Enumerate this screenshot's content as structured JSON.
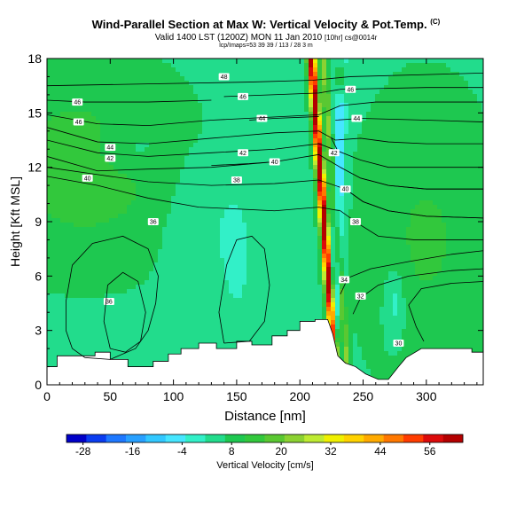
{
  "header": {
    "title": "Wind-Parallel Section at Max W: Vertical Velocity & Pot.Temp.",
    "title_mark": "(C)",
    "subtitle": "Valid 1400 LST (1200Z) MON 11 Jan 2010",
    "subtitle_note": "[10hr] cs@0014r",
    "location": "lcp/Imaps=53 39 39 / 113 / 28 3 m"
  },
  "chart_data": {
    "type": "heatmap",
    "xlabel": "Distance [nm]",
    "ylabel": "Height [Kft MSL]",
    "xlim": [
      0,
      345
    ],
    "ylim": [
      0,
      18
    ],
    "x_ticks": [
      "0",
      "50",
      "100",
      "150",
      "200",
      "250",
      "300"
    ],
    "y_ticks": [
      "0",
      "3",
      "6",
      "9",
      "12",
      "15",
      "18"
    ],
    "x_tick_values": [
      0,
      50,
      100,
      150,
      200,
      250,
      300
    ],
    "y_tick_values": [
      0,
      3,
      6,
      9,
      12,
      15,
      18
    ],
    "grid": false,
    "colorbar": {
      "label": "Vertical Velocity [cm/s]",
      "tick_labels": [
        "-28",
        "-16",
        "-4",
        "8",
        "20",
        "32",
        "44",
        "56"
      ],
      "tick_values": [
        -28,
        -16,
        -4,
        8,
        20,
        32,
        44,
        56
      ],
      "range": [
        -32,
        64
      ],
      "colors": [
        "#0000c8",
        "#0a3cf0",
        "#1e78ff",
        "#28a0ff",
        "#32c8ff",
        "#46e6ff",
        "#32f0c8",
        "#22dc8c",
        "#1ec850",
        "#32c83c",
        "#5ac832",
        "#8cd232",
        "#beeb32",
        "#f0f000",
        "#ffd200",
        "#ffaa00",
        "#ff7800",
        "#ff3c00",
        "#dc0a0a",
        "#b40000"
      ]
    },
    "terrain_profile": [
      [
        0,
        1.0
      ],
      [
        8,
        1.0
      ],
      [
        8,
        1.6
      ],
      [
        18,
        1.6
      ],
      [
        38,
        1.6
      ],
      [
        38,
        1.8
      ],
      [
        50,
        1.8
      ],
      [
        50,
        1.4
      ],
      [
        64,
        1.4
      ],
      [
        64,
        1.0
      ],
      [
        84,
        1.0
      ],
      [
        84,
        1.3
      ],
      [
        96,
        1.3
      ],
      [
        96,
        1.7
      ],
      [
        106,
        1.7
      ],
      [
        106,
        2.0
      ],
      [
        120,
        2.0
      ],
      [
        120,
        2.3
      ],
      [
        134,
        2.3
      ],
      [
        134,
        2.0
      ],
      [
        150,
        2.0
      ],
      [
        150,
        2.4
      ],
      [
        162,
        2.4
      ],
      [
        162,
        2.2
      ],
      [
        178,
        2.2
      ],
      [
        178,
        2.7
      ],
      [
        190,
        2.7
      ],
      [
        190,
        3.0
      ],
      [
        200,
        3.0
      ],
      [
        200,
        3.5
      ],
      [
        212,
        3.5
      ],
      [
        212,
        3.6
      ],
      [
        222,
        3.6
      ],
      [
        226,
        2.8
      ],
      [
        230,
        1.6
      ],
      [
        236,
        1.2
      ],
      [
        244,
        1.0
      ],
      [
        252,
        0.6
      ],
      [
        262,
        0.3
      ],
      [
        270,
        0.3
      ],
      [
        278,
        1.0
      ],
      [
        284,
        1.5
      ],
      [
        296,
        2.0
      ],
      [
        336,
        2.0
      ],
      [
        336,
        1.8
      ],
      [
        345,
        1.8
      ]
    ],
    "theta_contours": [
      {
        "label": "30",
        "points": [
          [
            298,
            2.4
          ],
          [
            292,
            3.2
          ],
          [
            286,
            4.4
          ],
          [
            296,
            5.3
          ],
          [
            320,
            5.6
          ],
          [
            345,
            5.7
          ]
        ],
        "label_at": [
          278,
          2.3
        ]
      },
      {
        "label": "32",
        "points": [
          [
            242,
            3.9
          ],
          [
            248,
            4.8
          ],
          [
            262,
            5.5
          ],
          [
            286,
            6.0
          ],
          [
            320,
            6.3
          ],
          [
            345,
            6.4
          ]
        ],
        "label_at": [
          248,
          4.9
        ]
      },
      {
        "label": "34",
        "points": [
          [
            232,
            5.0
          ],
          [
            238,
            5.9
          ],
          [
            256,
            6.4
          ],
          [
            286,
            6.8
          ],
          [
            320,
            7.2
          ],
          [
            345,
            7.4
          ]
        ],
        "label_at": [
          235,
          5.8
        ]
      },
      {
        "label": "36",
        "points": [
          [
            0,
            11.5
          ],
          [
            40,
            11.0
          ],
          [
            80,
            10.3
          ],
          [
            120,
            9.8
          ],
          [
            180,
            9.6
          ],
          [
            215,
            9.8
          ],
          [
            232,
            9.6
          ],
          [
            246,
            8.9
          ],
          [
            262,
            8.2
          ],
          [
            290,
            8.0
          ],
          [
            320,
            8.0
          ],
          [
            345,
            8.0
          ]
        ],
        "label_at": [
          84,
          9.0
        ]
      },
      {
        "label": "38",
        "points": [
          [
            0,
            12.0
          ],
          [
            40,
            11.6
          ],
          [
            80,
            11.2
          ],
          [
            130,
            11.0
          ],
          [
            180,
            11.1
          ],
          [
            215,
            11.3
          ],
          [
            236,
            10.8
          ],
          [
            250,
            10.1
          ],
          [
            270,
            9.6
          ],
          [
            300,
            9.3
          ],
          [
            345,
            9.2
          ]
        ],
        "label_at": [
          150,
          11.3
        ]
      },
      {
        "label": "38",
        "points": [
          [
            236,
            10.8
          ],
          [
            250,
            10.1
          ],
          [
            270,
            9.6
          ],
          [
            300,
            9.3
          ],
          [
            345,
            9.2
          ]
        ],
        "label_at": [
          244,
          9.0
        ]
      },
      {
        "label": "40",
        "points": [
          [
            0,
            12.6
          ],
          [
            40,
            11.8
          ],
          [
            80,
            11.9
          ],
          [
            130,
            12.0
          ],
          [
            180,
            12.3
          ],
          [
            215,
            12.7
          ],
          [
            232,
            12.0
          ],
          [
            248,
            11.4
          ],
          [
            270,
            11.0
          ],
          [
            300,
            10.8
          ],
          [
            345,
            10.8
          ]
        ],
        "label_at": [
          32,
          11.4
        ]
      },
      {
        "label": "40",
        "points": [
          [
            232,
            12.0
          ],
          [
            248,
            11.4
          ],
          [
            270,
            11.0
          ],
          [
            300,
            10.8
          ],
          [
            345,
            10.8
          ]
        ],
        "label_at": [
          236,
          10.8
        ]
      },
      {
        "label": "40",
        "points": [
          [
            130,
            12.1
          ],
          [
            160,
            12.2
          ],
          [
            180,
            12.3
          ]
        ],
        "label_at": [
          180,
          12.3
        ]
      },
      {
        "label": "42",
        "points": [
          [
            0,
            13.5
          ],
          [
            40,
            12.8
          ],
          [
            80,
            12.6
          ],
          [
            130,
            12.8
          ],
          [
            180,
            13.0
          ],
          [
            215,
            13.3
          ],
          [
            230,
            12.9
          ],
          [
            248,
            12.4
          ],
          [
            270,
            12.0
          ],
          [
            300,
            12.0
          ],
          [
            345,
            12.0
          ]
        ],
        "label_at": [
          50,
          12.5
        ]
      },
      {
        "label": "42",
        "points": [
          [
            225,
            12.9
          ],
          [
            230,
            12.9
          ]
        ],
        "label_at": [
          155,
          12.8
        ]
      },
      {
        "label": "42",
        "points": [
          [
            225,
            13.6
          ],
          [
            230,
            12.9
          ]
        ],
        "label_at": [
          227,
          12.8
        ]
      },
      {
        "label": "44",
        "points": [
          [
            0,
            14.2
          ],
          [
            40,
            13.4
          ],
          [
            80,
            13.3
          ],
          [
            130,
            13.6
          ],
          [
            180,
            13.9
          ],
          [
            215,
            14.0
          ],
          [
            228,
            13.5
          ],
          [
            248,
            13.6
          ],
          [
            270,
            13.4
          ],
          [
            300,
            13.3
          ],
          [
            345,
            13.3
          ]
        ],
        "label_at": [
          50,
          13.1
        ]
      },
      {
        "label": "44",
        "points": [
          [
            160,
            14.6
          ],
          [
            180,
            14.7
          ],
          [
            215,
            14.8
          ]
        ],
        "label_at": [
          170,
          14.7
        ]
      },
      {
        "label": "44",
        "points": [
          [
            228,
            14.6
          ],
          [
            248,
            14.7
          ],
          [
            300,
            14.6
          ],
          [
            345,
            14.5
          ]
        ],
        "label_at": [
          245,
          14.7
        ]
      },
      {
        "label": "46",
        "points": [
          [
            0,
            14.9
          ],
          [
            40,
            14.4
          ],
          [
            80,
            14.3
          ],
          [
            130,
            14.6
          ],
          [
            215,
            14.9
          ],
          [
            232,
            15.4
          ],
          [
            260,
            15.6
          ],
          [
            300,
            15.6
          ],
          [
            345,
            15.6
          ]
        ],
        "label_at": [
          25,
          14.5
        ]
      },
      {
        "label": "46",
        "points": [
          [
            140,
            15.9
          ],
          [
            215,
            16.1
          ],
          [
            232,
            16.3
          ],
          [
            300,
            16.4
          ],
          [
            345,
            16.4
          ]
        ],
        "label_at": [
          155,
          15.9
        ]
      },
      {
        "label": "46",
        "points": [
          [
            0,
            15.7
          ],
          [
            30,
            15.6
          ],
          [
            80,
            15.6
          ],
          [
            130,
            15.7
          ]
        ],
        "label_at": [
          24,
          15.6
        ]
      },
      {
        "label": "46",
        "points": [
          [
            236,
            16.3
          ],
          [
            245,
            16.3
          ]
        ],
        "label_at": [
          240,
          16.3
        ]
      },
      {
        "label": "48",
        "points": [
          [
            0,
            16.5
          ],
          [
            80,
            16.6
          ],
          [
            160,
            16.7
          ],
          [
            210,
            16.8
          ],
          [
            240,
            17.0
          ],
          [
            345,
            17.2
          ]
        ],
        "label_at": [
          140,
          17.0
        ]
      },
      {
        "label": "36",
        "points": [
          [
            20,
            2.0
          ],
          [
            15,
            3.0
          ],
          [
            15,
            4.6
          ],
          [
            20,
            6.6
          ],
          [
            36,
            7.8
          ],
          [
            60,
            8.2
          ],
          [
            80,
            7.5
          ],
          [
            88,
            6.0
          ],
          [
            86,
            4.5
          ],
          [
            80,
            3.0
          ],
          [
            70,
            2.0
          ],
          [
            50,
            1.4
          ],
          [
            30,
            1.5
          ],
          [
            20,
            2.0
          ]
        ],
        "label_at": [
          49,
          4.6
        ]
      },
      {
        "label": "",
        "points": [
          [
            50,
            2.0
          ],
          [
            45,
            3.5
          ],
          [
            48,
            5.5
          ],
          [
            60,
            6.2
          ],
          [
            72,
            5.7
          ],
          [
            78,
            4.0
          ],
          [
            74,
            2.4
          ],
          [
            62,
            1.8
          ],
          [
            50,
            2.0
          ]
        ],
        "label_at": null
      },
      {
        "label": "",
        "points": [
          [
            140,
            2.3
          ],
          [
            136,
            4.0
          ],
          [
            142,
            6.6
          ],
          [
            150,
            8.0
          ],
          [
            162,
            8.2
          ],
          [
            172,
            7.5
          ],
          [
            176,
            5.5
          ],
          [
            172,
            3.5
          ],
          [
            160,
            2.4
          ],
          [
            140,
            2.3
          ]
        ],
        "label_at": null
      }
    ]
  }
}
